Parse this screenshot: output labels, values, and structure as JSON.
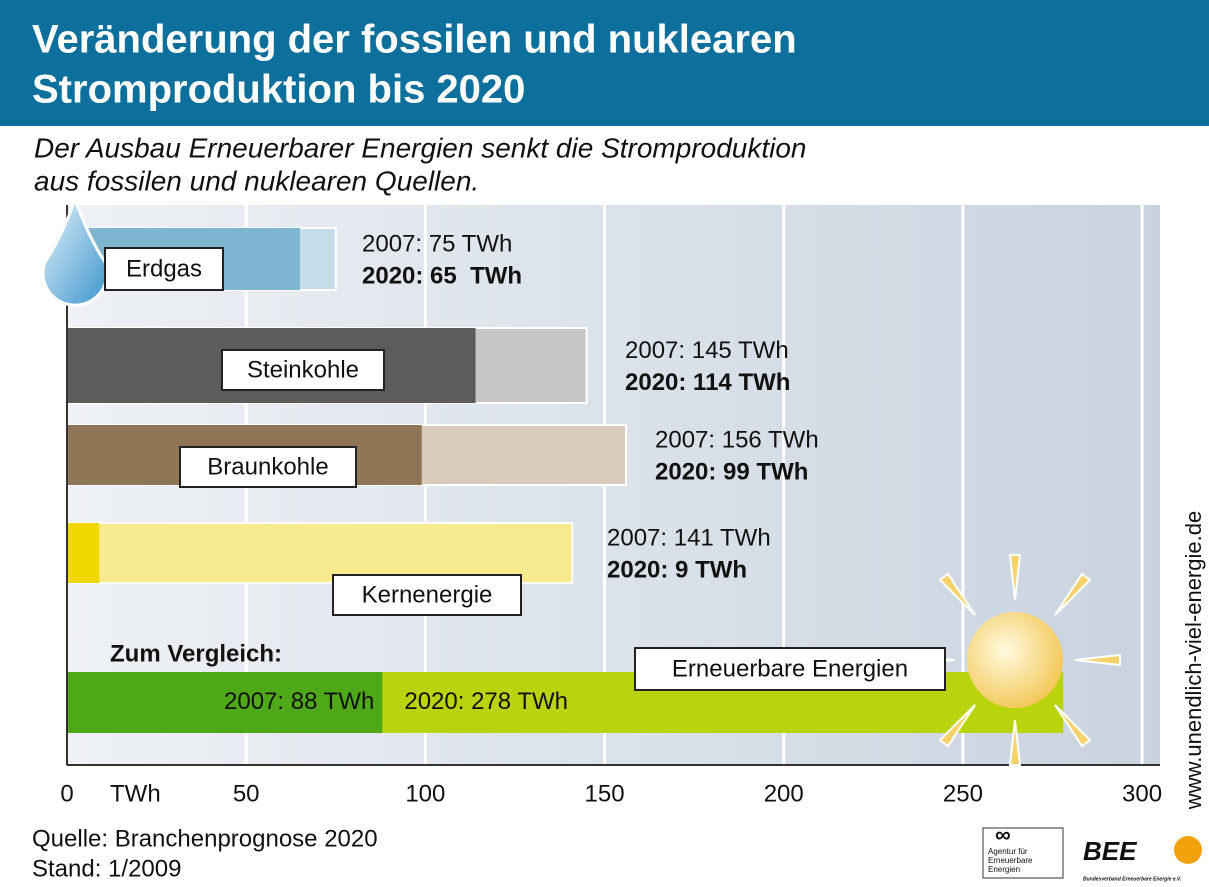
{
  "chart_data": {
    "type": "bar",
    "orientation": "horizontal",
    "title": [
      "Veränderung der fossilen und nuklearen",
      "Stromproduktion bis 2020"
    ],
    "subtitle": [
      "Der Ausbau Erneuerbarer Energien senkt die Stromproduktion",
      "aus fossilen und nuklearen Quellen."
    ],
    "x_label": "TWh",
    "categories": [
      "Erdgas",
      "Steinkohle",
      "Braunkohle",
      "Kernenergie"
    ],
    "series": [
      {
        "values": [
          75,
          145,
          156,
          141
        ],
        "value_labels": [
          "2007: 75 TWh",
          "2007: 145 TWh",
          "2007: 156 TWh",
          "2007: 141 TWh"
        ],
        "colors": [
          "#c5dde9",
          "#c6c6c6",
          "#d9cbbb",
          "#f8ea8e"
        ]
      },
      {
        "values": [
          65,
          114,
          99,
          9
        ],
        "value_labels": [
          "2020: 65  TWh",
          "2020: 114 TWh",
          "2020: 99 TWh",
          "2020: 9 TWh"
        ],
        "colors": [
          "#7fb6cf",
          "#5c5c5c",
          "#8f7556",
          "#f0d800"
        ]
      }
    ],
    "comparison": {
      "label": "Zum Vergleich:",
      "name": "Erneuerbare Energien",
      "values": [
        88,
        278
      ],
      "value_labels": [
        "2007: 88 TWh",
        "2020: 278 TWh"
      ],
      "colors": [
        "#4fa818",
        "#b9d40c"
      ]
    },
    "xlim": [
      0,
      305
    ],
    "xticks": [
      0,
      50,
      100,
      150,
      200,
      250,
      300
    ],
    "grid": true,
    "source": "Quelle: Branchenprognose 2020",
    "date": "Stand: 1/2009",
    "url": "www.unendlich-viel-energie.de",
    "logos": [
      "Agentur für",
      "Erneuerbare",
      "Energien",
      "BEE",
      "Bundesverband Erneuerbare Energie e.V."
    ]
  }
}
